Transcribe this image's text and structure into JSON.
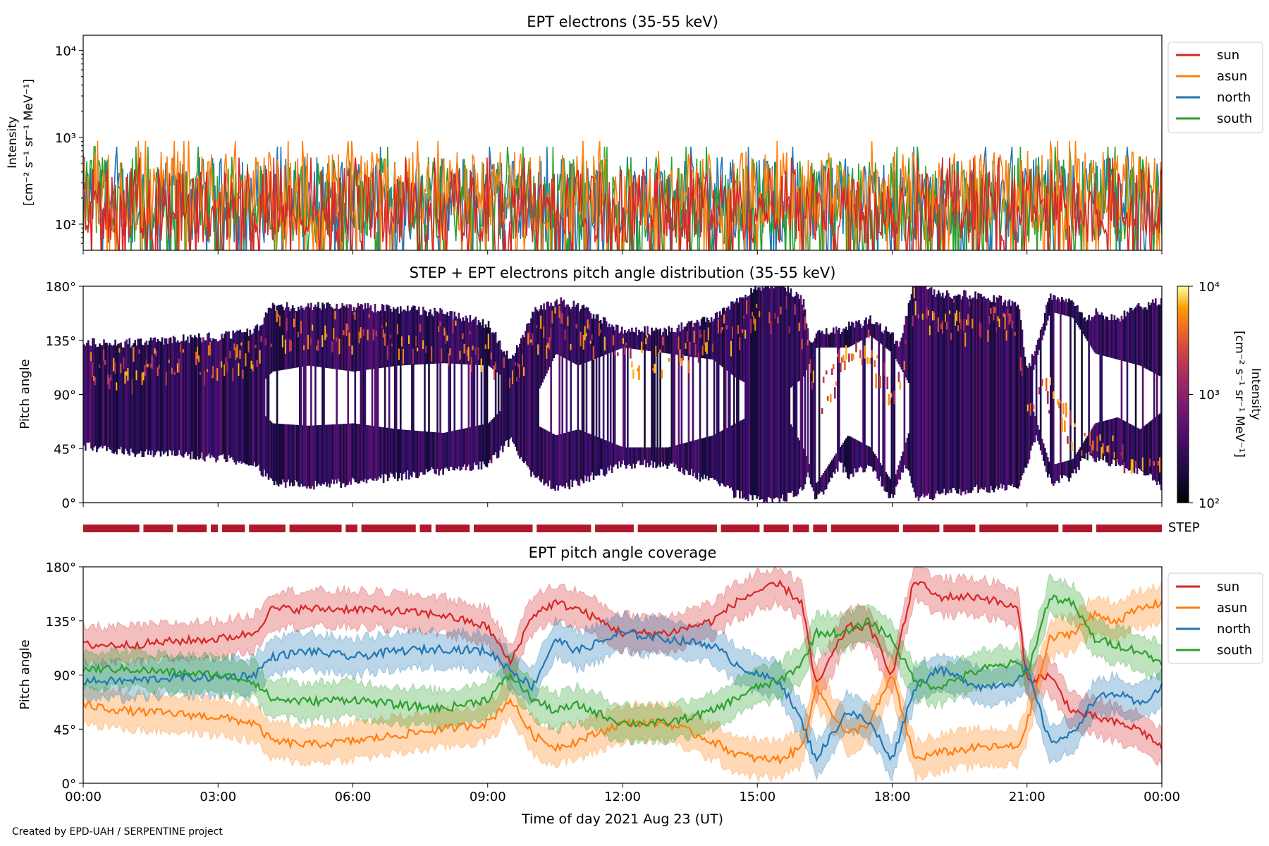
{
  "credit": "Created by EPD-UAH / SERPENTINE project",
  "colors": {
    "sun": "#d62728",
    "asun": "#ff7f0e",
    "north": "#1f77b4",
    "south": "#2ca02c",
    "step_bar": "#b2182b"
  },
  "chart_data": [
    {
      "type": "line",
      "title": "EPT electrons (35-55 keV)",
      "ylabel_line1": "Intensity",
      "ylabel_line2": "[cm⁻² s⁻¹ sr⁻¹ MeV⁻¹]",
      "yscale": "log",
      "ylim": [
        50,
        15000
      ],
      "yticks": [
        {
          "value": 100,
          "label": "10²"
        },
        {
          "value": 1000,
          "label": "10³"
        },
        {
          "value": 10000,
          "label": "10⁴"
        }
      ],
      "xlim_hours": [
        0,
        24
      ],
      "legend_position": "right",
      "series": [
        {
          "name": "sun",
          "color": "#d62728",
          "typical_range": [
            60,
            450
          ]
        },
        {
          "name": "asun",
          "color": "#ff7f0e",
          "typical_range": [
            80,
            700
          ]
        },
        {
          "name": "north",
          "color": "#1f77b4",
          "typical_range": [
            60,
            600
          ]
        },
        {
          "name": "south",
          "color": "#2ca02c",
          "typical_range": [
            60,
            600
          ]
        }
      ]
    },
    {
      "type": "heatmap",
      "title": "STEP + EPT electrons pitch angle distribution (35-55 keV)",
      "ylabel": "Pitch angle",
      "ylim": [
        0,
        180
      ],
      "yticks": [
        "0°",
        "45°",
        "90°",
        "135°",
        "180°"
      ],
      "xlim_hours": [
        0,
        24
      ],
      "colorbar": {
        "label_line1": "Intensity",
        "label_line2": "[cm⁻² s⁻¹ sr⁻¹ MeV⁻¹]",
        "scale": "log",
        "ticks": [
          "10²",
          "10³",
          "10⁴"
        ],
        "range": [
          100,
          10000
        ]
      }
    },
    {
      "type": "bar",
      "label": "STEP",
      "xlim_hours": [
        0,
        24
      ],
      "gaps_hours": [
        1.25,
        2.0,
        2.75,
        3.0,
        3.6,
        4.5,
        5.75,
        6.1,
        7.4,
        7.75,
        8.6,
        10.0,
        11.3,
        12.25,
        14.1,
        15.05,
        15.7,
        16.15,
        16.55,
        18.15,
        19.05,
        19.85,
        21.7,
        22.45
      ],
      "color": "#b2182b"
    },
    {
      "type": "line",
      "title": "EPT pitch angle coverage",
      "ylabel": "Pitch angle",
      "xlabel": "Time of day 2021 Aug 23 (UT)",
      "ylim": [
        0,
        180
      ],
      "yticks": [
        "0°",
        "45°",
        "90°",
        "135°",
        "180°"
      ],
      "xlim_hours": [
        0,
        24
      ],
      "xticks": [
        "00:00",
        "03:00",
        "06:00",
        "09:00",
        "12:00",
        "15:00",
        "18:00",
        "21:00",
        "00:00"
      ],
      "legend_position": "right",
      "band_halfwidth_deg": 15,
      "series": [
        {
          "name": "sun",
          "color": "#d62728",
          "x": [
            0,
            1,
            2,
            3,
            3.8,
            4.2,
            5,
            6,
            7,
            8,
            9,
            9.5,
            10,
            10.5,
            11,
            12,
            13,
            14,
            14.5,
            15,
            15.5,
            16,
            16.3,
            17,
            17.5,
            18,
            18.5,
            19,
            20,
            20.8,
            21,
            21.5,
            22,
            22.5,
            23,
            23.5,
            24
          ],
          "y": [
            115,
            115,
            118,
            120,
            125,
            145,
            145,
            145,
            143,
            140,
            130,
            100,
            140,
            150,
            145,
            125,
            125,
            135,
            150,
            160,
            165,
            150,
            80,
            130,
            130,
            90,
            170,
            155,
            155,
            145,
            85,
            90,
            60,
            55,
            50,
            45,
            30
          ]
        },
        {
          "name": "asun",
          "color": "#ff7f0e",
          "x": [
            0,
            1,
            2,
            3,
            3.8,
            4.2,
            5,
            6,
            7,
            8,
            9,
            9.5,
            10,
            10.5,
            11,
            12,
            13,
            14,
            14.5,
            15,
            15.5,
            16,
            16.3,
            17,
            17.5,
            18,
            18.5,
            19,
            20,
            20.8,
            21,
            21.5,
            22,
            22.5,
            23,
            23.5,
            24
          ],
          "y": [
            65,
            60,
            58,
            55,
            50,
            35,
            32,
            35,
            40,
            45,
            50,
            70,
            40,
            30,
            35,
            50,
            50,
            35,
            25,
            20,
            20,
            30,
            80,
            40,
            50,
            90,
            20,
            25,
            30,
            30,
            50,
            120,
            125,
            140,
            135,
            145,
            150
          ]
        },
        {
          "name": "north",
          "color": "#1f77b4",
          "x": [
            0,
            1,
            2,
            3,
            3.8,
            4.2,
            5,
            6,
            7,
            8,
            9,
            9.5,
            10,
            10.5,
            11,
            12,
            13,
            14,
            14.5,
            15,
            15.5,
            16,
            16.3,
            17,
            17.5,
            18,
            18.5,
            19,
            20,
            20.8,
            21,
            21.5,
            22,
            22.5,
            23,
            23.5,
            24
          ],
          "y": [
            85,
            85,
            88,
            88,
            90,
            105,
            110,
            105,
            110,
            112,
            110,
            95,
            80,
            120,
            110,
            125,
            120,
            115,
            100,
            90,
            85,
            50,
            20,
            60,
            50,
            20,
            80,
            95,
            80,
            85,
            95,
            35,
            40,
            70,
            75,
            65,
            80
          ]
        },
        {
          "name": "south",
          "color": "#2ca02c",
          "x": [
            0,
            1,
            2,
            3,
            3.8,
            4.2,
            5,
            6,
            7,
            8,
            9,
            9.5,
            10,
            10.5,
            11,
            12,
            13,
            14,
            14.5,
            15,
            15.5,
            16,
            16.3,
            17,
            17.5,
            18,
            18.5,
            19,
            20,
            20.8,
            21,
            21.5,
            22,
            22.5,
            23,
            23.5,
            24
          ],
          "y": [
            95,
            95,
            92,
            90,
            85,
            70,
            68,
            70,
            65,
            62,
            70,
            90,
            70,
            60,
            65,
            50,
            50,
            60,
            70,
            80,
            85,
            100,
            125,
            125,
            135,
            120,
            85,
            80,
            95,
            100,
            90,
            155,
            150,
            120,
            115,
            110,
            100
          ]
        }
      ]
    }
  ]
}
